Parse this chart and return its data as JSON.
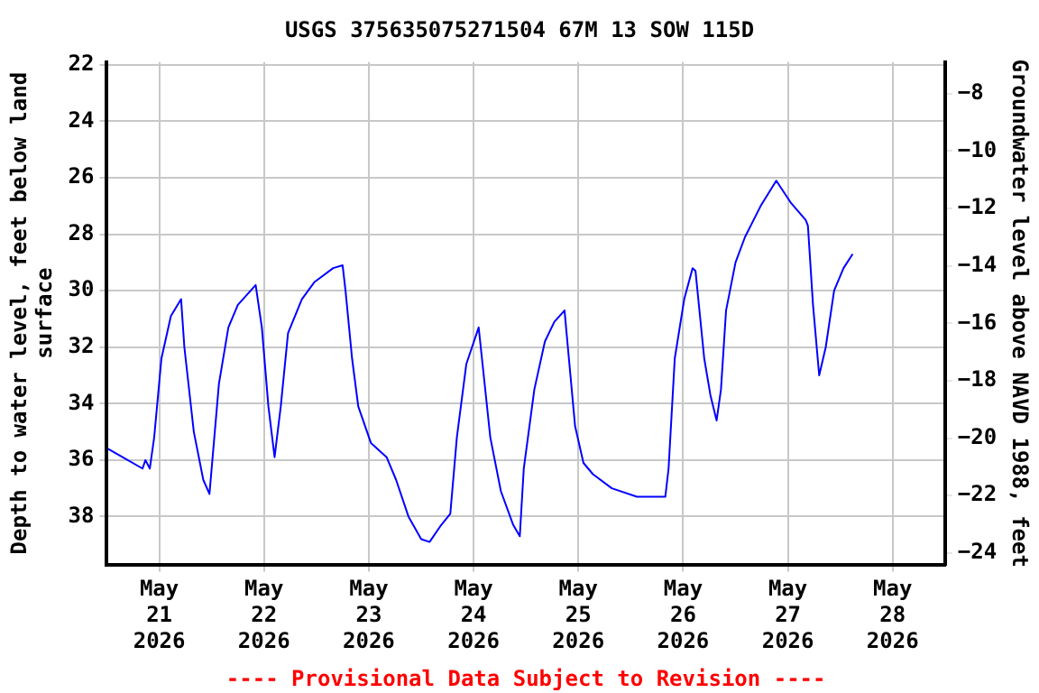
{
  "chart_data": {
    "type": "line",
    "title": "USGS 375635075271504 67M 13 SOW 115D",
    "ylabel": "Depth to water level, feet below land surface",
    "y2label": "Groundwater level above NAVD 1988, feet",
    "x": [
      "2026-05-20T12:15",
      "2026-05-20T20:10",
      "2026-05-20T20:50",
      "2026-05-20T21:50",
      "2026-05-20T22:50",
      "2026-05-21T00:30",
      "2026-05-21T02:40",
      "2026-05-21T05:00",
      "2026-05-21T05:45",
      "2026-05-21T07:55",
      "2026-05-21T10:05",
      "2026-05-21T11:30",
      "2026-05-21T12:30",
      "2026-05-21T13:40",
      "2026-05-21T15:50",
      "2026-05-21T18:00",
      "2026-05-21T22:05",
      "2026-05-21T23:30",
      "2026-05-22T01:00",
      "2026-05-22T02:25",
      "2026-05-22T03:50",
      "2026-05-22T05:30",
      "2026-05-22T08:40",
      "2026-05-22T11:30",
      "2026-05-22T15:50",
      "2026-05-22T18:00",
      "2026-05-22T18:40",
      "2026-05-22T20:10",
      "2026-05-22T21:35",
      "2026-05-23T00:30",
      "2026-05-23T04:05",
      "2026-05-23T06:15",
      "2026-05-23T09:05",
      "2026-05-23T12:00",
      "2026-05-23T13:55",
      "2026-05-23T16:35",
      "2026-05-23T18:40",
      "2026-05-23T20:10",
      "2026-05-23T22:20",
      "2026-05-24T01:10",
      "2026-05-24T01:55",
      "2026-05-24T03:50",
      "2026-05-24T06:15",
      "2026-05-24T09:05",
      "2026-05-24T10:35",
      "2026-05-24T11:30",
      "2026-05-24T13:55",
      "2026-05-24T16:20",
      "2026-05-24T18:30",
      "2026-05-24T20:50",
      "2026-05-24T21:50",
      "2026-05-24T23:15",
      "2026-05-25T01:10",
      "2026-05-25T03:20",
      "2026-05-25T07:40",
      "2026-05-25T13:25",
      "2026-05-25T19:55",
      "2026-05-25T20:40",
      "2026-05-25T22:05",
      "2026-05-26T00:15",
      "2026-05-26T02:10",
      "2026-05-26T02:50",
      "2026-05-26T04:50",
      "2026-05-26T06:15",
      "2026-05-26T07:40",
      "2026-05-26T08:40",
      "2026-05-26T09:50",
      "2026-05-26T12:00",
      "2026-05-26T14:10",
      "2026-05-26T17:45",
      "2026-05-26T21:20",
      "2026-05-27T00:45",
      "2026-05-27T04:05",
      "2026-05-27T04:35",
      "2026-05-27T05:45",
      "2026-05-27T07:10",
      "2026-05-27T08:40",
      "2026-05-27T10:35",
      "2026-05-27T12:45",
      "2026-05-27T14:50"
    ],
    "series": [
      {
        "color": "#0000ff",
        "values": [
          35.6,
          36.3,
          36.0,
          36.3,
          35.2,
          32.4,
          30.9,
          30.3,
          32.0,
          35.0,
          36.7,
          37.2,
          35.4,
          33.3,
          31.3,
          30.5,
          29.8,
          31.3,
          34.1,
          35.9,
          34.1,
          31.5,
          30.3,
          29.7,
          29.2,
          29.1,
          30.0,
          32.4,
          34.1,
          35.4,
          35.9,
          36.7,
          38.0,
          38.8,
          38.9,
          38.3,
          37.9,
          35.2,
          32.6,
          31.3,
          32.4,
          35.2,
          37.1,
          38.3,
          38.7,
          36.3,
          33.5,
          31.8,
          31.1,
          30.7,
          32.4,
          34.8,
          36.1,
          36.5,
          37.0,
          37.3,
          37.3,
          36.3,
          32.4,
          30.3,
          29.2,
          29.3,
          32.4,
          33.7,
          34.6,
          33.5,
          30.7,
          29.0,
          28.1,
          27.0,
          26.1,
          26.9,
          27.5,
          27.7,
          30.5,
          33.0,
          32.0,
          30.0,
          29.2,
          28.7
        ]
      }
    ],
    "xlim": [
      "2026-05-20T12:00",
      "2026-05-28T12:00"
    ],
    "xticks": [
      {
        "value": "2026-05-21",
        "label": "May 21 2026"
      },
      {
        "value": "2026-05-22",
        "label": "May 22 2026"
      },
      {
        "value": "2026-05-23",
        "label": "May 23 2026"
      },
      {
        "value": "2026-05-24",
        "label": "May 24 2026"
      },
      {
        "value": "2026-05-25",
        "label": "May 25 2026"
      },
      {
        "value": "2026-05-26",
        "label": "May 26 2026"
      },
      {
        "value": "2026-05-27",
        "label": "May 27 2026"
      },
      {
        "value": "2026-05-28",
        "label": "May 28 2026"
      }
    ],
    "ylim": [
      39.7,
      21.9
    ],
    "yticks": [
      22,
      24,
      26,
      28,
      30,
      32,
      34,
      36,
      38
    ],
    "y2lim": [
      -24.4,
      -6.9
    ],
    "y2ticks": [
      -8,
      -10,
      -12,
      -14,
      -16,
      -18,
      -20,
      -22,
      -24
    ],
    "grid": true,
    "legend": false,
    "marker": "none",
    "line_style": "solid",
    "annotations": [
      "---- Provisional Data Subject to Revision ----"
    ]
  }
}
